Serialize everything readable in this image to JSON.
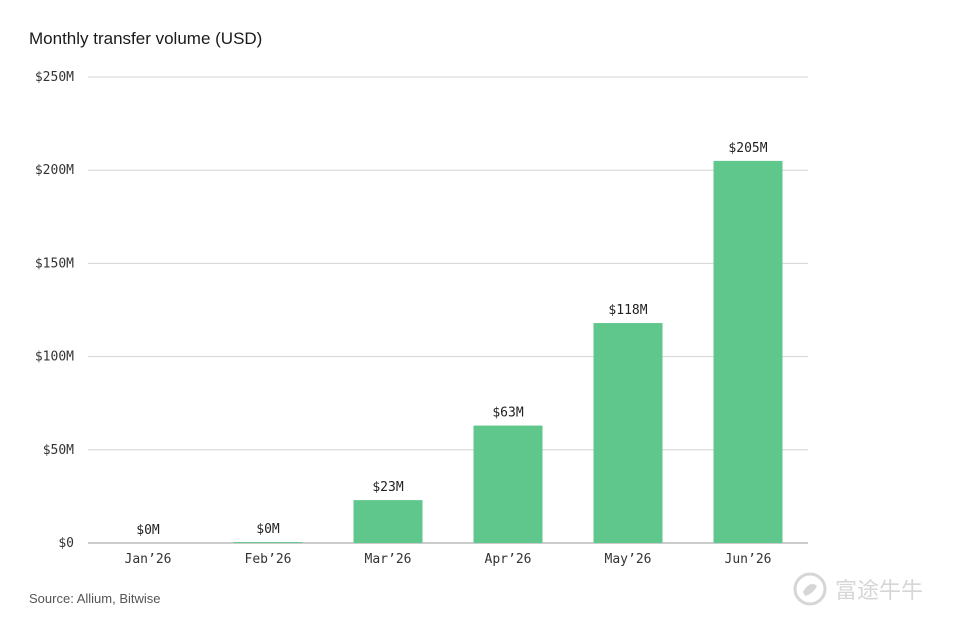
{
  "chart_data": {
    "type": "bar",
    "title": "Monthly transfer volume (USD)",
    "xlabel": "",
    "ylabel": "",
    "categories": [
      "Jan’26",
      "Feb’26",
      "Mar’26",
      "Apr’26",
      "May’26",
      "Jun’26"
    ],
    "values": [
      0,
      0.5,
      23,
      63,
      118,
      205
    ],
    "data_labels": [
      "$0M",
      "$0M",
      "$23M",
      "$63M",
      "$118M",
      "$205M"
    ],
    "ylim": [
      0,
      250
    ],
    "yticks": [
      0,
      50,
      100,
      150,
      200,
      250
    ],
    "ytick_labels": [
      "$0",
      "$50M",
      "$100M",
      "$150M",
      "$200M",
      "$250M"
    ],
    "grid": true,
    "bar_color": "#5fc68c",
    "source": "Source: Allium, Bitwise"
  },
  "watermark": {
    "text": "富途牛牛",
    "icon": "futu-logo-icon"
  }
}
